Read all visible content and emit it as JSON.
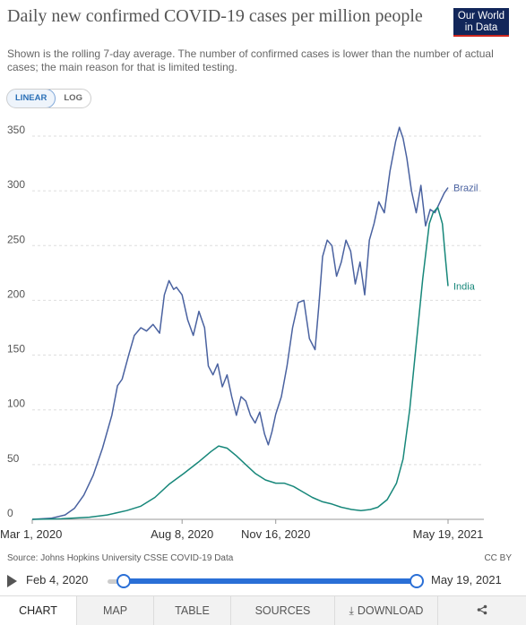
{
  "header": {
    "title": "Daily new confirmed COVID-19 cases per million people",
    "subtitle": "Shown is the rolling 7-day average. The number of confirmed cases is lower than the number of actual cases; the main reason for that is limited testing.",
    "logo_line1": "Our World",
    "logo_line2": "in Data"
  },
  "scale_toggle": {
    "linear": "LINEAR",
    "log": "LOG",
    "selected": "LINEAR"
  },
  "colors": {
    "brazil": "#4a62a0",
    "india": "#17877a",
    "accent": "#2a6fd6",
    "logo_bg": "#12265a",
    "logo_red": "#ce261e"
  },
  "chart_data": {
    "type": "line",
    "title": "Daily new confirmed COVID-19 cases per million people",
    "ylim": [
      0,
      350
    ],
    "y_ticks": [
      0,
      50,
      100,
      150,
      200,
      250,
      300,
      350
    ],
    "x_ticks": [
      "Mar 1, 2020",
      "Aug 8, 2020",
      "Nov 16, 2020",
      "May 19, 2021"
    ],
    "x_tick_dates": [
      "2020-03-01",
      "2020-08-08",
      "2020-11-16",
      "2021-05-19"
    ],
    "xlim": [
      "2020-03-01",
      "2021-05-19"
    ],
    "grid": true,
    "legend": "end-of-line labels",
    "series": [
      {
        "name": "Brazil",
        "x": [
          "2020-03-01",
          "2020-03-21",
          "2020-04-05",
          "2020-04-15",
          "2020-04-25",
          "2020-05-05",
          "2020-05-15",
          "2020-05-25",
          "2020-05-31",
          "2020-06-05",
          "2020-06-12",
          "2020-06-18",
          "2020-06-25",
          "2020-07-01",
          "2020-07-08",
          "2020-07-15",
          "2020-07-20",
          "2020-07-25",
          "2020-07-30",
          "2020-08-02",
          "2020-08-08",
          "2020-08-14",
          "2020-08-20",
          "2020-08-26",
          "2020-09-01",
          "2020-09-05",
          "2020-09-10",
          "2020-09-15",
          "2020-09-20",
          "2020-09-25",
          "2020-09-30",
          "2020-10-05",
          "2020-10-10",
          "2020-10-15",
          "2020-10-20",
          "2020-10-25",
          "2020-10-30",
          "2020-11-04",
          "2020-11-08",
          "2020-11-12",
          "2020-11-16",
          "2020-11-22",
          "2020-11-28",
          "2020-12-04",
          "2020-12-10",
          "2020-12-16",
          "2020-12-22",
          "2020-12-28",
          "2021-01-01",
          "2021-01-05",
          "2021-01-10",
          "2021-01-15",
          "2021-01-20",
          "2021-01-25",
          "2021-01-30",
          "2021-02-04",
          "2021-02-09",
          "2021-02-14",
          "2021-02-19",
          "2021-02-24",
          "2021-03-01",
          "2021-03-06",
          "2021-03-12",
          "2021-03-18",
          "2021-03-24",
          "2021-03-28",
          "2021-04-01",
          "2021-04-05",
          "2021-04-10",
          "2021-04-15",
          "2021-04-20",
          "2021-04-25",
          "2021-04-30",
          "2021-05-05",
          "2021-05-10",
          "2021-05-15",
          "2021-05-19"
        ],
        "values": [
          0,
          1,
          4,
          10,
          22,
          40,
          65,
          95,
          122,
          128,
          150,
          168,
          175,
          172,
          178,
          170,
          205,
          218,
          210,
          212,
          205,
          182,
          168,
          190,
          175,
          140,
          132,
          142,
          121,
          132,
          112,
          95,
          112,
          108,
          95,
          88,
          98,
          78,
          68,
          80,
          96,
          112,
          140,
          175,
          198,
          200,
          165,
          155,
          195,
          240,
          255,
          250,
          222,
          235,
          255,
          245,
          215,
          235,
          205,
          255,
          270,
          290,
          280,
          318,
          345,
          358,
          348,
          330,
          300,
          280,
          305,
          268,
          283,
          280,
          289,
          298,
          303
        ]
      },
      {
        "name": "India",
        "x": [
          "2020-03-01",
          "2020-04-01",
          "2020-05-01",
          "2020-05-20",
          "2020-06-10",
          "2020-06-25",
          "2020-07-10",
          "2020-07-25",
          "2020-08-10",
          "2020-08-25",
          "2020-09-08",
          "2020-09-16",
          "2020-09-25",
          "2020-10-05",
          "2020-10-15",
          "2020-10-25",
          "2020-11-05",
          "2020-11-16",
          "2020-11-25",
          "2020-12-05",
          "2020-12-15",
          "2020-12-25",
          "2021-01-05",
          "2021-01-15",
          "2021-01-25",
          "2021-02-05",
          "2021-02-15",
          "2021-02-25",
          "2021-03-05",
          "2021-03-15",
          "2021-03-25",
          "2021-04-01",
          "2021-04-08",
          "2021-04-15",
          "2021-04-22",
          "2021-04-29",
          "2021-05-03",
          "2021-05-08",
          "2021-05-13",
          "2021-05-16",
          "2021-05-19"
        ],
        "values": [
          0,
          0.5,
          2,
          4,
          8,
          12,
          20,
          32,
          42,
          52,
          62,
          67,
          65,
          58,
          50,
          42,
          36,
          33,
          33,
          30,
          25,
          20,
          16,
          14,
          11,
          9,
          8,
          9,
          11,
          18,
          33,
          55,
          100,
          160,
          220,
          270,
          280,
          285,
          270,
          240,
          213
        ]
      }
    ]
  },
  "footer": {
    "source": "Source: Johns Hopkins University CSSE COVID-19 Data",
    "license": "CC BY"
  },
  "timeline": {
    "start_label": "Feb 4, 2020",
    "end_label": "May 19, 2021",
    "start_position": 0,
    "end_position": 1
  },
  "tabs": [
    {
      "label": "CHART",
      "active": true
    },
    {
      "label": "MAP"
    },
    {
      "label": "TABLE"
    },
    {
      "label": "SOURCES"
    },
    {
      "label": "DOWNLOAD"
    },
    {
      "label": ""
    }
  ]
}
